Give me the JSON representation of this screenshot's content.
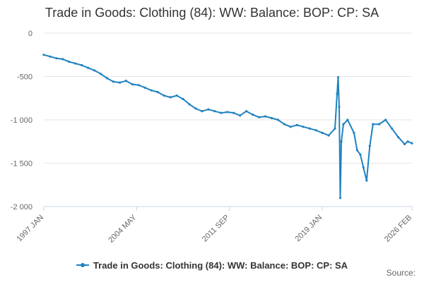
{
  "page": {
    "title": "Trade in Goods: Clothing (84): WW: Balance: BOP: CP: SA"
  },
  "legend": {
    "label": "Trade in Goods: Clothing (84): WW: Balance: BOP: CP: SA"
  },
  "credits": {
    "label": "Source:"
  },
  "colors": {
    "series": "#1f82c0",
    "grid": "#e6e6e6",
    "axis": "#ccd6eb",
    "text": "#666666"
  },
  "chart_data": {
    "type": "line",
    "title": "Trade in Goods: Clothing (84): WW: Balance: BOP: CP: SA",
    "xlabel": "",
    "ylabel": "",
    "ylim": [
      -2000,
      0
    ],
    "yticks": [
      0,
      -500,
      -1000,
      -1500,
      -2000
    ],
    "ytick_labels": [
      "0",
      "-500",
      "-1 000",
      "-1 500",
      "-2 000"
    ],
    "xlim": [
      "1997-01",
      "2026-02"
    ],
    "xticks": [
      "1997-01",
      "2004-05",
      "2011-09",
      "2019-01",
      "2026-02"
    ],
    "xtick_labels": [
      "1997 JAN",
      "2004 MAY",
      "2011 SEP",
      "2019 JAN",
      "2026 FEB"
    ],
    "grid": true,
    "legend_position": "bottom",
    "series": [
      {
        "name": "Trade in Goods: Clothing (84): WW: Balance: BOP: CP: SA",
        "color": "#1f82c0",
        "x": [
          "1997-01",
          "1997-07",
          "1998-01",
          "1998-07",
          "1999-01",
          "1999-07",
          "2000-01",
          "2000-07",
          "2001-01",
          "2001-07",
          "2002-01",
          "2002-07",
          "2003-01",
          "2003-07",
          "2004-01",
          "2004-07",
          "2005-01",
          "2005-07",
          "2006-01",
          "2006-07",
          "2007-01",
          "2007-07",
          "2008-01",
          "2008-07",
          "2009-01",
          "2009-07",
          "2010-01",
          "2010-07",
          "2011-01",
          "2011-07",
          "2012-01",
          "2012-07",
          "2013-01",
          "2013-07",
          "2014-01",
          "2014-07",
          "2015-01",
          "2015-07",
          "2016-01",
          "2016-07",
          "2017-01",
          "2017-07",
          "2018-01",
          "2018-07",
          "2019-01",
          "2019-07",
          "2020-01",
          "2020-03",
          "2020-04",
          "2020-05",
          "2020-06",
          "2020-07",
          "2020-09",
          "2021-01",
          "2021-07",
          "2021-10",
          "2022-01",
          "2022-04",
          "2022-07",
          "2022-10",
          "2023-01",
          "2023-07",
          "2024-01",
          "2024-07",
          "2025-01",
          "2025-07",
          "2025-10",
          "2026-02"
        ],
        "y": [
          -250,
          -270,
          -290,
          -300,
          -330,
          -350,
          -370,
          -400,
          -430,
          -470,
          -520,
          -560,
          -570,
          -550,
          -590,
          -600,
          -630,
          -660,
          -680,
          -720,
          -740,
          -720,
          -760,
          -820,
          -870,
          -900,
          -880,
          -900,
          -920,
          -910,
          -920,
          -950,
          -900,
          -940,
          -970,
          -960,
          -980,
          -1000,
          -1050,
          -1080,
          -1060,
          -1080,
          -1100,
          -1120,
          -1150,
          -1180,
          -1100,
          -700,
          -510,
          -850,
          -1900,
          -1250,
          -1050,
          -1000,
          -1150,
          -1350,
          -1400,
          -1550,
          -1700,
          -1300,
          -1050,
          -1050,
          -1000,
          -1100,
          -1200,
          -1280,
          -1250,
          -1270
        ]
      }
    ]
  }
}
